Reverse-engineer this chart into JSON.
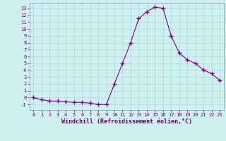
{
  "x": [
    0,
    1,
    2,
    3,
    4,
    5,
    6,
    7,
    8,
    9,
    10,
    11,
    12,
    13,
    14,
    15,
    16,
    17,
    18,
    19,
    20,
    21,
    22,
    23
  ],
  "y": [
    0.0,
    -0.3,
    -0.5,
    -0.5,
    -0.6,
    -0.7,
    -0.7,
    -0.8,
    -1.0,
    -1.0,
    2.0,
    5.0,
    8.0,
    11.5,
    12.5,
    13.2,
    13.0,
    9.0,
    6.5,
    5.5,
    5.0,
    4.0,
    3.5,
    2.5
  ],
  "line_color": "#800080",
  "marker": "+",
  "marker_size": 4,
  "bg_color": "#cff0f0",
  "grid_color": "#a8d8d8",
  "xlabel": "Windchill (Refroidissement éolien,°C)",
  "xlim": [
    -0.5,
    23.5
  ],
  "ylim": [
    -1.8,
    13.8
  ],
  "yticks": [
    -1,
    0,
    1,
    2,
    3,
    4,
    5,
    6,
    7,
    8,
    9,
    10,
    11,
    12,
    13
  ],
  "xticks": [
    0,
    1,
    2,
    3,
    4,
    5,
    6,
    7,
    8,
    9,
    10,
    11,
    12,
    13,
    14,
    15,
    16,
    17,
    18,
    19,
    20,
    21,
    22,
    23
  ],
  "tick_fontsize": 5.0,
  "xlabel_fontsize": 6.0
}
